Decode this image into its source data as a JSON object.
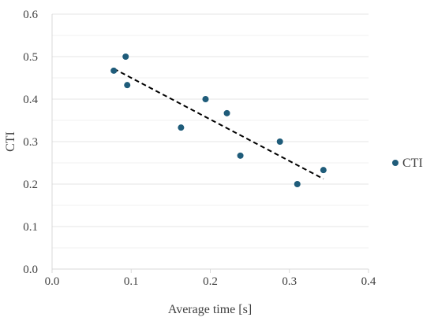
{
  "chart_data": {
    "type": "scatter",
    "xlabel": "Average time [s]",
    "ylabel": "CTI",
    "xlim": [
      0.0,
      0.4
    ],
    "ylim": [
      0.0,
      0.6
    ],
    "x_ticks": [
      "0.0",
      "0.1",
      "0.2",
      "0.3",
      "0.4"
    ],
    "y_ticks": [
      "0.0",
      "0.1",
      "0.2",
      "0.3",
      "0.4",
      "0.5",
      "0.6"
    ],
    "grid": "horizontal",
    "legend_position": "right",
    "series": [
      {
        "name": "CTI",
        "color": "#1f5c7a",
        "x": [
          0.078,
          0.093,
          0.095,
          0.163,
          0.194,
          0.221,
          0.238,
          0.288,
          0.31,
          0.343
        ],
        "y": [
          0.467,
          0.5,
          0.433,
          0.333,
          0.4,
          0.367,
          0.267,
          0.3,
          0.2,
          0.233
        ]
      }
    ],
    "trendline": {
      "style": "dashed",
      "color": "#000000",
      "x_range": [
        0.078,
        0.343
      ]
    }
  }
}
